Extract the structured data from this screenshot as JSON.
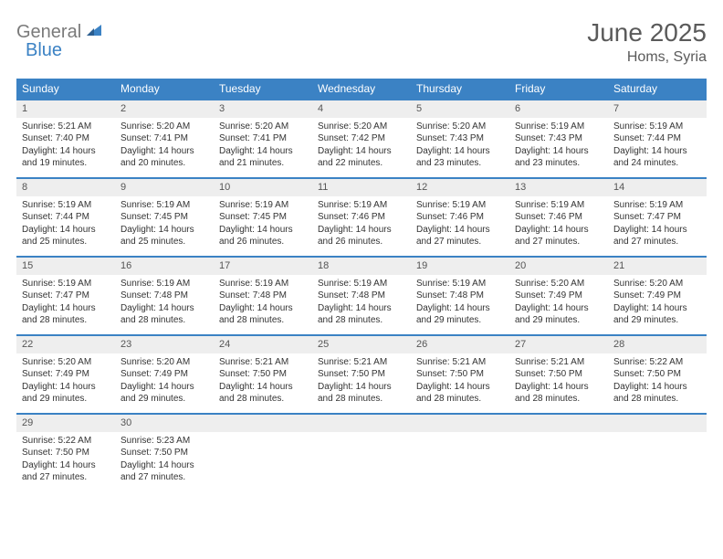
{
  "brand": {
    "word1": "General",
    "word2": "Blue"
  },
  "title": "June 2025",
  "location": "Homs, Syria",
  "colors": {
    "header_bg": "#3b82c4",
    "header_text": "#ffffff",
    "daynum_bg": "#eeeeee",
    "border": "#3b82c4",
    "text": "#333333",
    "title_text": "#5a5a5a",
    "logo_gray": "#7a7a7a",
    "logo_blue": "#3b82c4"
  },
  "dow": [
    "Sunday",
    "Monday",
    "Tuesday",
    "Wednesday",
    "Thursday",
    "Friday",
    "Saturday"
  ],
  "days": [
    {
      "n": "1",
      "sr": "5:21 AM",
      "ss": "7:40 PM",
      "dl": "14 hours and 19 minutes."
    },
    {
      "n": "2",
      "sr": "5:20 AM",
      "ss": "7:41 PM",
      "dl": "14 hours and 20 minutes."
    },
    {
      "n": "3",
      "sr": "5:20 AM",
      "ss": "7:41 PM",
      "dl": "14 hours and 21 minutes."
    },
    {
      "n": "4",
      "sr": "5:20 AM",
      "ss": "7:42 PM",
      "dl": "14 hours and 22 minutes."
    },
    {
      "n": "5",
      "sr": "5:20 AM",
      "ss": "7:43 PM",
      "dl": "14 hours and 23 minutes."
    },
    {
      "n": "6",
      "sr": "5:19 AM",
      "ss": "7:43 PM",
      "dl": "14 hours and 23 minutes."
    },
    {
      "n": "7",
      "sr": "5:19 AM",
      "ss": "7:44 PM",
      "dl": "14 hours and 24 minutes."
    },
    {
      "n": "8",
      "sr": "5:19 AM",
      "ss": "7:44 PM",
      "dl": "14 hours and 25 minutes."
    },
    {
      "n": "9",
      "sr": "5:19 AM",
      "ss": "7:45 PM",
      "dl": "14 hours and 25 minutes."
    },
    {
      "n": "10",
      "sr": "5:19 AM",
      "ss": "7:45 PM",
      "dl": "14 hours and 26 minutes."
    },
    {
      "n": "11",
      "sr": "5:19 AM",
      "ss": "7:46 PM",
      "dl": "14 hours and 26 minutes."
    },
    {
      "n": "12",
      "sr": "5:19 AM",
      "ss": "7:46 PM",
      "dl": "14 hours and 27 minutes."
    },
    {
      "n": "13",
      "sr": "5:19 AM",
      "ss": "7:46 PM",
      "dl": "14 hours and 27 minutes."
    },
    {
      "n": "14",
      "sr": "5:19 AM",
      "ss": "7:47 PM",
      "dl": "14 hours and 27 minutes."
    },
    {
      "n": "15",
      "sr": "5:19 AM",
      "ss": "7:47 PM",
      "dl": "14 hours and 28 minutes."
    },
    {
      "n": "16",
      "sr": "5:19 AM",
      "ss": "7:48 PM",
      "dl": "14 hours and 28 minutes."
    },
    {
      "n": "17",
      "sr": "5:19 AM",
      "ss": "7:48 PM",
      "dl": "14 hours and 28 minutes."
    },
    {
      "n": "18",
      "sr": "5:19 AM",
      "ss": "7:48 PM",
      "dl": "14 hours and 28 minutes."
    },
    {
      "n": "19",
      "sr": "5:19 AM",
      "ss": "7:48 PM",
      "dl": "14 hours and 29 minutes."
    },
    {
      "n": "20",
      "sr": "5:20 AM",
      "ss": "7:49 PM",
      "dl": "14 hours and 29 minutes."
    },
    {
      "n": "21",
      "sr": "5:20 AM",
      "ss": "7:49 PM",
      "dl": "14 hours and 29 minutes."
    },
    {
      "n": "22",
      "sr": "5:20 AM",
      "ss": "7:49 PM",
      "dl": "14 hours and 29 minutes."
    },
    {
      "n": "23",
      "sr": "5:20 AM",
      "ss": "7:49 PM",
      "dl": "14 hours and 29 minutes."
    },
    {
      "n": "24",
      "sr": "5:21 AM",
      "ss": "7:50 PM",
      "dl": "14 hours and 28 minutes."
    },
    {
      "n": "25",
      "sr": "5:21 AM",
      "ss": "7:50 PM",
      "dl": "14 hours and 28 minutes."
    },
    {
      "n": "26",
      "sr": "5:21 AM",
      "ss": "7:50 PM",
      "dl": "14 hours and 28 minutes."
    },
    {
      "n": "27",
      "sr": "5:21 AM",
      "ss": "7:50 PM",
      "dl": "14 hours and 28 minutes."
    },
    {
      "n": "28",
      "sr": "5:22 AM",
      "ss": "7:50 PM",
      "dl": "14 hours and 28 minutes."
    },
    {
      "n": "29",
      "sr": "5:22 AM",
      "ss": "7:50 PM",
      "dl": "14 hours and 27 minutes."
    },
    {
      "n": "30",
      "sr": "5:23 AM",
      "ss": "7:50 PM",
      "dl": "14 hours and 27 minutes."
    }
  ],
  "labels": {
    "sunrise": "Sunrise:",
    "sunset": "Sunset:",
    "daylight": "Daylight:"
  },
  "grid": {
    "start_weekday": 0,
    "total_days": 30,
    "columns": 7
  }
}
